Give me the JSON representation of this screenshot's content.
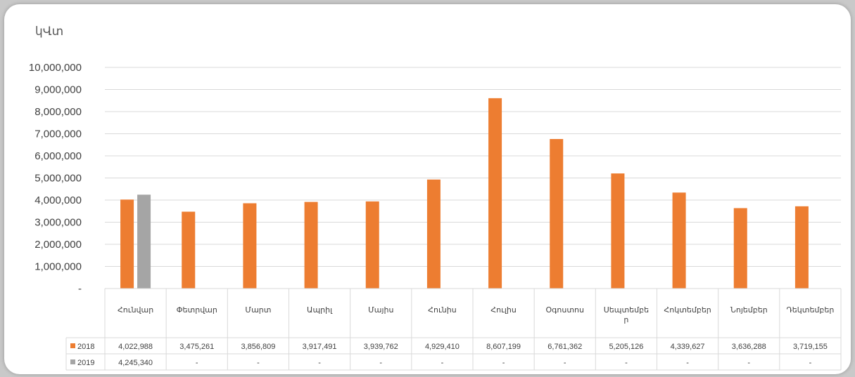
{
  "chart_data": {
    "type": "bar",
    "title": "",
    "ylabel": "կՎտ",
    "xlabel": "",
    "ylim": [
      0,
      10000000
    ],
    "yticks": [
      0,
      1000000,
      2000000,
      3000000,
      4000000,
      5000000,
      6000000,
      7000000,
      8000000,
      9000000,
      10000000
    ],
    "ytick_labels": [
      "-",
      "1,000,000",
      "2,000,000",
      "3,000,000",
      "4,000,000",
      "5,000,000",
      "6,000,000",
      "7,000,000",
      "8,000,000",
      "9,000,000",
      "10,000,000"
    ],
    "grid": true,
    "legend": "data table",
    "categories": [
      [
        "Հունվար"
      ],
      [
        "Փետրվար"
      ],
      [
        "Մարտ"
      ],
      [
        "Ապրիլ"
      ],
      [
        "Մայիս"
      ],
      [
        "Հունիս"
      ],
      [
        "Հուլիս"
      ],
      [
        "Օգոստոս"
      ],
      [
        "Սեպտեմբե",
        "ր"
      ],
      [
        "Հոկտեմբեր"
      ],
      [
        "Նոյեմբեր"
      ],
      [
        "Դեկտեմբեր"
      ]
    ],
    "series": [
      {
        "name": "2018",
        "color": "#ed7d31",
        "values": [
          4022988,
          3475261,
          3856809,
          3917491,
          3939762,
          4929410,
          8607199,
          6761362,
          5205126,
          4339627,
          3636288,
          3719155
        ],
        "labels": [
          "4,022,988",
          "3,475,261",
          "3,856,809",
          "3,917,491",
          "3,939,762",
          "4,929,410",
          "8,607,199",
          "6,761,362",
          "5,205,126",
          "4,339,627",
          "3,636,288",
          "3,719,155"
        ]
      },
      {
        "name": "2019",
        "color": "#a5a5a5",
        "values": [
          4245340,
          null,
          null,
          null,
          null,
          null,
          null,
          null,
          null,
          null,
          null,
          null
        ],
        "labels": [
          "4,245,340",
          "-",
          "-",
          "-",
          "-",
          "-",
          "-",
          "-",
          "-",
          "-",
          "-",
          "-"
        ]
      }
    ]
  }
}
